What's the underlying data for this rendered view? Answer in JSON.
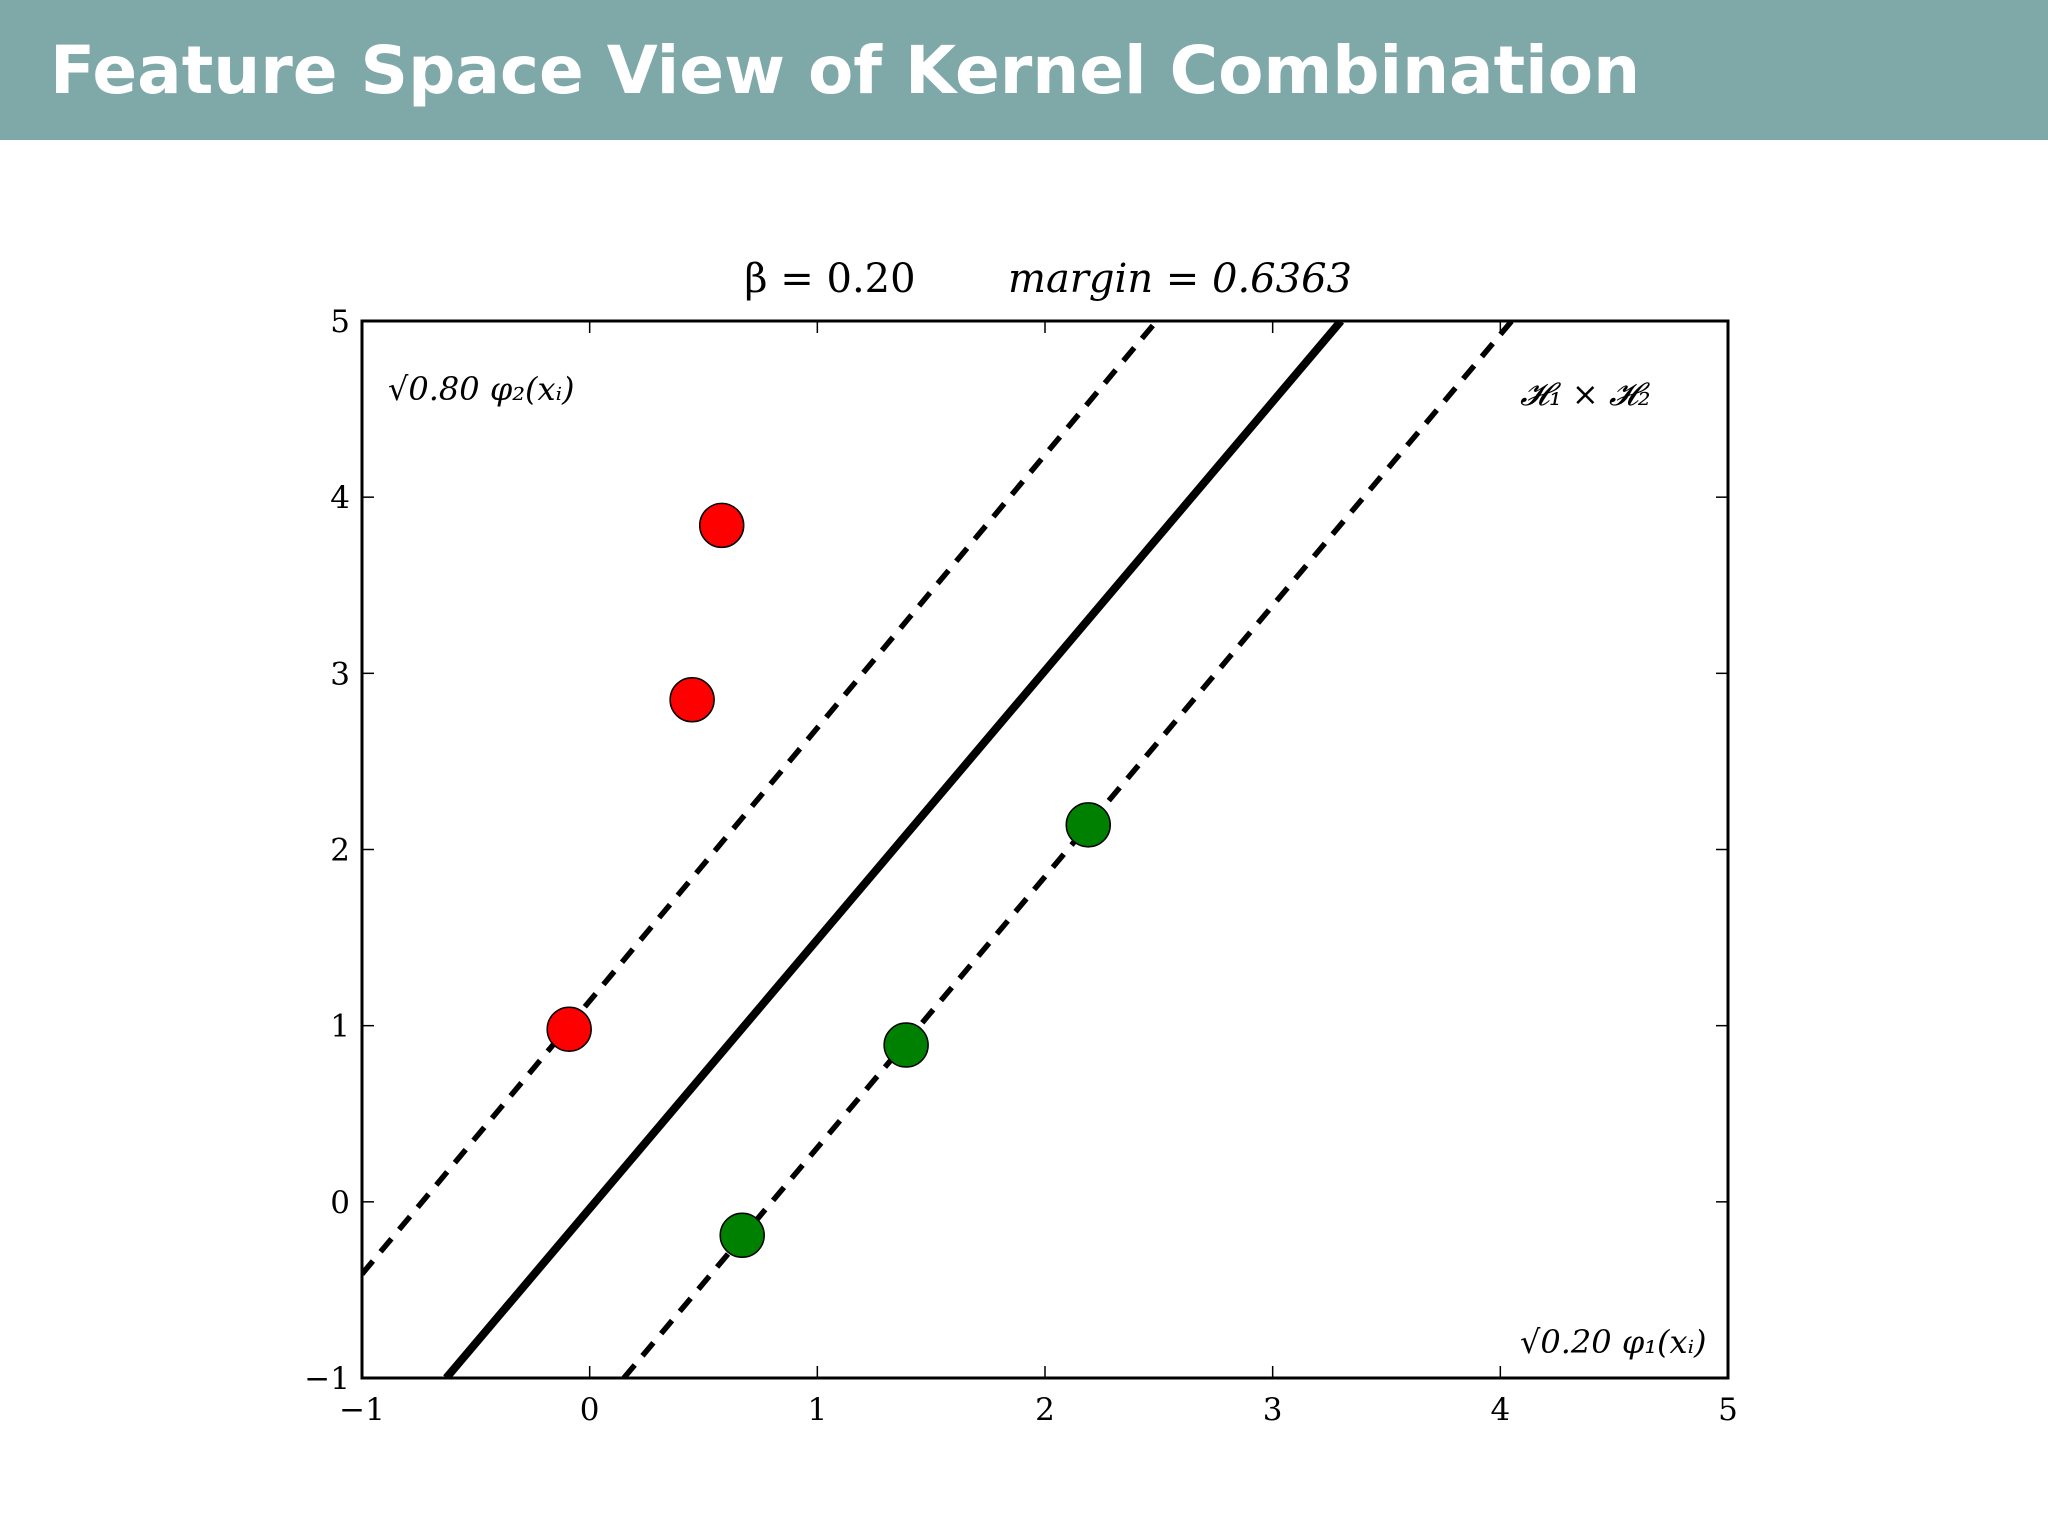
{
  "slide": {
    "title": "Feature Space View of Kernel Combination",
    "header_color": "#7fa9a8"
  },
  "chart_data": {
    "type": "scatter",
    "title": {
      "beta_label": "β = 0.20",
      "margin_label": "margin = 0.6363"
    },
    "xlabel": "",
    "ylabel": "",
    "xlim": [
      -1,
      5
    ],
    "ylim": [
      -1,
      5
    ],
    "xticks": [
      -1,
      0,
      1,
      2,
      3,
      4,
      5
    ],
    "yticks": [
      -1,
      0,
      1,
      2,
      3,
      4,
      5
    ],
    "xtick_labels": [
      "−1",
      "0",
      "1",
      "2",
      "3",
      "4",
      "5"
    ],
    "ytick_labels": [
      "−1",
      "0",
      "1",
      "2",
      "3",
      "4",
      "5"
    ],
    "grid": false,
    "annotations": {
      "top_left": "√0.80 φ₂(xᵢ)",
      "top_right": "𝓗₁ × 𝓗₂",
      "bottom_right": "√0.20 φ₁(xᵢ)"
    },
    "series": [
      {
        "class": "negative",
        "color": "#ff0000",
        "points": [
          {
            "x": -0.09,
            "y": 0.98
          },
          {
            "x": 0.45,
            "y": 2.85
          },
          {
            "x": 0.58,
            "y": 3.84
          }
        ]
      },
      {
        "class": "positive",
        "color": "#008000",
        "points": [
          {
            "x": 0.67,
            "y": -0.19
          },
          {
            "x": 1.39,
            "y": 0.89
          },
          {
            "x": 2.19,
            "y": 2.14
          }
        ]
      }
    ],
    "lines": [
      {
        "role": "margin-upper",
        "style": "dashed",
        "from": {
          "x": -1,
          "y": -0.41
        },
        "to": {
          "x": 2.49,
          "y": 5
        }
      },
      {
        "role": "decision-boundary",
        "style": "solid",
        "from": {
          "x": -0.63,
          "y": -1
        },
        "to": {
          "x": 3.3,
          "y": 5
        }
      },
      {
        "role": "margin-lower",
        "style": "dashed",
        "from": {
          "x": 0.15,
          "y": -1
        },
        "to": {
          "x": 4.05,
          "y": 5
        }
      }
    ]
  }
}
